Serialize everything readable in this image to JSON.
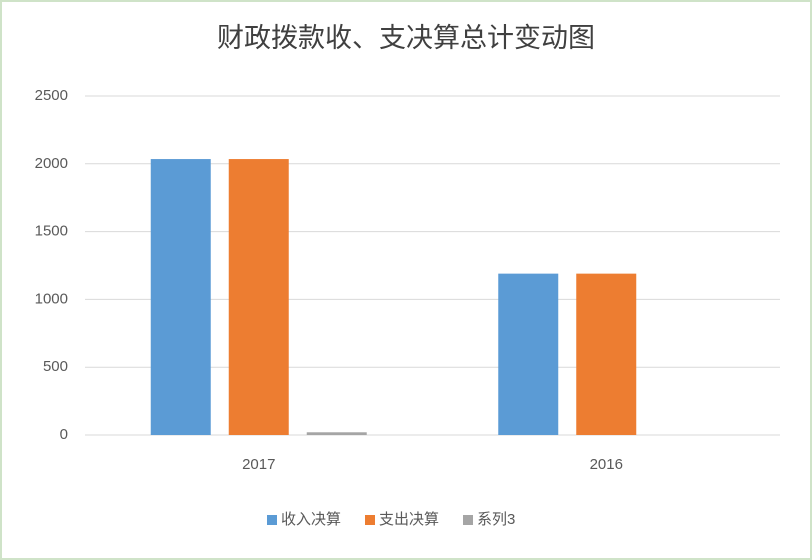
{
  "chart_data": {
    "type": "bar",
    "title": "财政拨款收、支决算总计变动图",
    "categories": [
      "2017",
      "2016"
    ],
    "series": [
      {
        "name": "收入决算",
        "color": "#5b9bd5",
        "values": [
          2035,
          1190
        ]
      },
      {
        "name": "支出决算",
        "color": "#ed7d31",
        "values": [
          2035,
          1190
        ]
      },
      {
        "name": "系列3",
        "color": "#a5a5a5",
        "values": [
          20,
          0
        ]
      }
    ],
    "ylim": [
      0,
      2500
    ],
    "yticks": [
      0,
      500,
      1000,
      1500,
      2000,
      2500
    ],
    "grid": true,
    "legend": "bottom"
  }
}
